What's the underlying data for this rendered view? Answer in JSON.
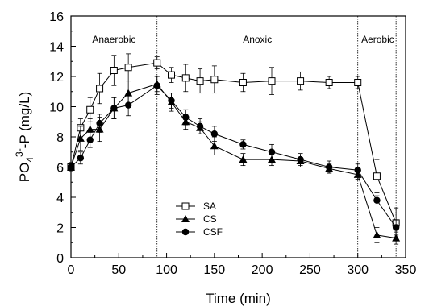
{
  "chart_data": {
    "type": "line",
    "xlabel": "Time (min)",
    "ylabel_parts": {
      "base": "PO",
      "sub": "4",
      "sup": "3-",
      "rest": "-P (mg/L)"
    },
    "xlim": [
      0,
      350
    ],
    "ylim": [
      0,
      16
    ],
    "xticks": [
      0,
      50,
      100,
      150,
      200,
      250,
      300,
      350
    ],
    "yticks": [
      0,
      2,
      4,
      6,
      8,
      10,
      12,
      14,
      16
    ],
    "grid": false,
    "legend_position": "lower-left",
    "phase_boundaries": [
      90,
      300,
      340
    ],
    "phase_labels": [
      "Anaerobic",
      "Anoxic",
      "Aerobic"
    ],
    "x": [
      0,
      10,
      20,
      30,
      45,
      60,
      90,
      105,
      120,
      135,
      150,
      180,
      210,
      240,
      270,
      300,
      320,
      340
    ],
    "series": [
      {
        "name": "SA",
        "marker": "open-square",
        "values": [
          6.0,
          8.6,
          9.8,
          11.2,
          12.4,
          12.6,
          12.9,
          12.1,
          11.9,
          11.7,
          11.8,
          11.6,
          11.7,
          11.7,
          11.6,
          11.6,
          5.4,
          2.3
        ],
        "errors": [
          0.3,
          0.6,
          0.8,
          1.0,
          1.0,
          0.9,
          0.4,
          0.5,
          0.9,
          0.8,
          0.9,
          0.6,
          0.9,
          0.6,
          0.4,
          0.4,
          1.1,
          1.0
        ]
      },
      {
        "name": "CS",
        "marker": "filled-triangle",
        "values": [
          6.0,
          7.9,
          8.5,
          8.5,
          9.9,
          10.9,
          11.5,
          10.3,
          9.0,
          8.6,
          7.4,
          6.5,
          6.5,
          6.4,
          5.9,
          5.5,
          1.5,
          1.3
        ],
        "errors": [
          0.3,
          0.8,
          0.7,
          0.8,
          0.7,
          0.8,
          0.5,
          0.6,
          0.5,
          0.4,
          0.6,
          0.4,
          0.4,
          0.4,
          0.3,
          0.3,
          0.5,
          0.4
        ]
      },
      {
        "name": "CSF",
        "marker": "filled-circle",
        "values": [
          6.0,
          6.6,
          7.8,
          8.9,
          9.9,
          10.1,
          11.4,
          10.4,
          9.3,
          8.7,
          8.2,
          7.5,
          7.0,
          6.5,
          6.0,
          5.8,
          3.8,
          2.0
        ],
        "errors": [
          0.3,
          0.4,
          0.5,
          0.6,
          0.7,
          0.7,
          0.6,
          0.5,
          0.5,
          0.5,
          0.5,
          0.3,
          0.5,
          0.4,
          0.4,
          0.4,
          0.3,
          0.5
        ]
      }
    ]
  }
}
